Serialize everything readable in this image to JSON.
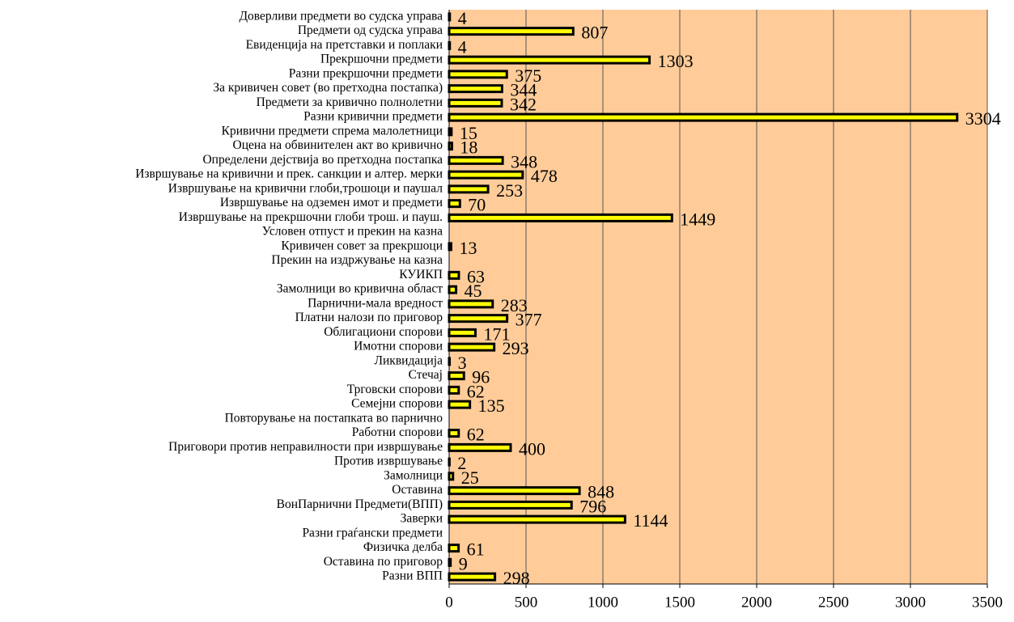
{
  "chart_data": {
    "type": "bar",
    "orientation": "horizontal",
    "categories": [
      "Доверливи предмети во судска управа",
      "Предмети од  судска управа",
      "Евиденција на претставки и поплаки",
      "Прекршочни предмети",
      "Разни прекршочни предмети",
      "За кривичен совет (во претходна постапка) ",
      "Предмети за кривично полнолетни",
      "Разни кривични предмети",
      "Кривични предмети спрема малолетници",
      "Оцена на обвинителен акт во кривично",
      "Определени дејствија во претходна постапка",
      "Извршување на кривични и прек. санкции и алтер. мерки",
      "Извршување на кривични глоби,трошоци и паушал",
      "Извршување на одземен имот и предмети",
      "Извршување на прекршочни глоби трош. и пауш.",
      "Условен отпуст и прекин на казна",
      "Кривичен совет за прекршоци",
      "Прекин на издржување на казна",
      "КУИКП",
      "Замолници во кривична област",
      "Парнични-мала вредност",
      "Платни налози по приговор",
      "Облигациони спорови",
      "Имотни спорови",
      "Ликвидација",
      "Стечај",
      "Трговски спорови",
      "Семејни спорови",
      "Повторување на постапката во парнично",
      "Работни спорови",
      "Приговори против  неправилности при извршување",
      "Против  извршување",
      "Замолници",
      "Оставина",
      "ВонПарнични Предмети(ВПП)",
      "Заверки",
      "Разни граѓански предмети",
      "Физичка делба",
      "Оставина по приговор",
      "Разни ВПП"
    ],
    "values": [
      4,
      807,
      4,
      1303,
      375,
      344,
      342,
      3304,
      15,
      18,
      348,
      478,
      253,
      70,
      1449,
      null,
      13,
      null,
      63,
      45,
      283,
      377,
      171,
      293,
      3,
      96,
      62,
      135,
      null,
      62,
      400,
      2,
      25,
      848,
      796,
      1144,
      null,
      61,
      9,
      298
    ],
    "color": "#ffff00",
    "background": "#ffcc99",
    "xlim": [
      0,
      3500
    ],
    "xticks": [
      0,
      500,
      1000,
      1500,
      2000,
      2500,
      3000,
      3500
    ],
    "grid": true
  }
}
